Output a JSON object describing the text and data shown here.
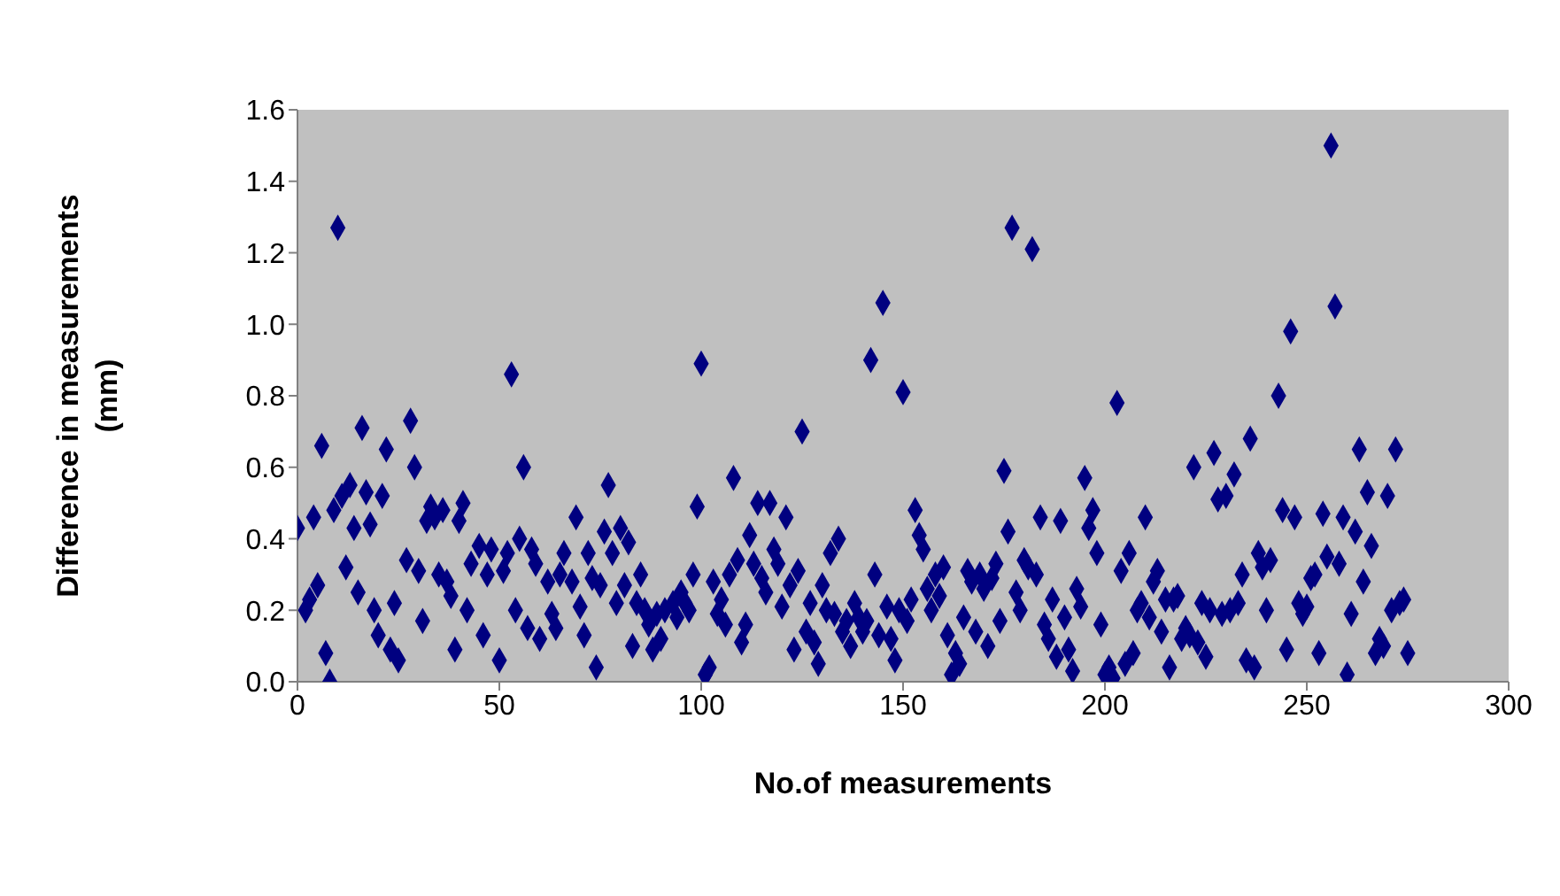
{
  "chart_data": {
    "type": "scatter",
    "xlabel": "No.of measurements",
    "ylabel": "Difference in measurements (mm)",
    "xlim": [
      0,
      300
    ],
    "xticks": [
      0,
      50,
      100,
      150,
      200,
      250,
      300
    ],
    "ylim": [
      0,
      1.6
    ],
    "yticks": [
      {
        "value": 0,
        "label": "0.0"
      },
      0.2,
      0.4,
      0.6,
      0.8,
      {
        "value": 1,
        "label": "1.0"
      },
      1.2,
      1.4,
      1.6
    ],
    "marker": "diamond",
    "grid": false,
    "legend": false,
    "series": [
      {
        "color": "#000080",
        "x": [
          0,
          2,
          3,
          4,
          5,
          6,
          7,
          8,
          9,
          10,
          11,
          12,
          13,
          14,
          15,
          16,
          17,
          18,
          19,
          20,
          21,
          22,
          23,
          24,
          25,
          27,
          28,
          29,
          30,
          31,
          32,
          33,
          34,
          35,
          36,
          37,
          38,
          39,
          40,
          41,
          42,
          43,
          45,
          46,
          47,
          48,
          50,
          51,
          52,
          53,
          54,
          55,
          56,
          57,
          58,
          59,
          60,
          62,
          63,
          64,
          65,
          66,
          68,
          69,
          70,
          71,
          72,
          73,
          74,
          75,
          76,
          77,
          78,
          79,
          80,
          81,
          82,
          83,
          84,
          85,
          86,
          87,
          88,
          89,
          90,
          91,
          93,
          94,
          95,
          96,
          97,
          98,
          99,
          100,
          101,
          102,
          103,
          104,
          105,
          106,
          107,
          108,
          109,
          110,
          111,
          112,
          113,
          114,
          115,
          116,
          117,
          118,
          119,
          120,
          121,
          122,
          123,
          124,
          125,
          126,
          127,
          128,
          129,
          130,
          131,
          132,
          133,
          134,
          135,
          136,
          137,
          138,
          139,
          140,
          141,
          142,
          143,
          144,
          145,
          146,
          147,
          148,
          149,
          150,
          151,
          152,
          153,
          154,
          155,
          156,
          157,
          158,
          159,
          160,
          161,
          162,
          163,
          164,
          165,
          166,
          167,
          168,
          169,
          170,
          171,
          172,
          173,
          174,
          175,
          176,
          177,
          178,
          179,
          180,
          181,
          182,
          183,
          184,
          185,
          186,
          187,
          188,
          189,
          190,
          191,
          192,
          193,
          194,
          195,
          196,
          197,
          198,
          199,
          200,
          201,
          202,
          203,
          204,
          205,
          206,
          207,
          208,
          209,
          210,
          211,
          212,
          213,
          214,
          215,
          216,
          217,
          218,
          219,
          220,
          221,
          222,
          223,
          224,
          225,
          226,
          227,
          228,
          229,
          230,
          231,
          232,
          233,
          234,
          235,
          236,
          237,
          238,
          239,
          240,
          241,
          243,
          244,
          245,
          246,
          247,
          248,
          249,
          250,
          251,
          252,
          253,
          254,
          255,
          256,
          257,
          258,
          259,
          260,
          261,
          262,
          263,
          264,
          265,
          266,
          267,
          268,
          269,
          270,
          271,
          272,
          273,
          274,
          275
        ],
        "values": [
          0.43,
          0.2,
          0.23,
          0.46,
          0.27,
          0.66,
          0.08,
          0.0,
          0.48,
          1.27,
          0.52,
          0.32,
          0.55,
          0.43,
          0.25,
          0.71,
          0.53,
          0.44,
          0.2,
          0.13,
          0.52,
          0.65,
          0.09,
          0.22,
          0.06,
          0.34,
          0.73,
          0.6,
          0.31,
          0.17,
          0.45,
          0.49,
          0.46,
          0.3,
          0.48,
          0.28,
          0.24,
          0.09,
          0.45,
          0.5,
          0.2,
          0.33,
          0.38,
          0.13,
          0.3,
          0.37,
          0.06,
          0.31,
          0.36,
          0.86,
          0.2,
          0.4,
          0.6,
          0.15,
          0.37,
          0.33,
          0.12,
          0.28,
          0.19,
          0.15,
          0.3,
          0.36,
          0.28,
          0.46,
          0.21,
          0.13,
          0.36,
          0.29,
          0.04,
          0.27,
          0.42,
          0.55,
          0.36,
          0.22,
          0.43,
          0.27,
          0.39,
          0.1,
          0.22,
          0.3,
          0.2,
          0.16,
          0.09,
          0.19,
          0.12,
          0.2,
          0.22,
          0.18,
          0.25,
          0.22,
          0.2,
          0.3,
          0.49,
          0.89,
          0.02,
          0.04,
          0.28,
          0.19,
          0.23,
          0.16,
          0.3,
          0.57,
          0.34,
          0.11,
          0.16,
          0.41,
          0.33,
          0.5,
          0.29,
          0.25,
          0.5,
          0.37,
          0.33,
          0.21,
          0.46,
          0.27,
          0.09,
          0.31,
          0.7,
          0.14,
          0.22,
          0.11,
          0.05,
          0.27,
          0.2,
          0.36,
          0.19,
          0.4,
          0.14,
          0.17,
          0.1,
          0.22,
          0.18,
          0.14,
          0.17,
          0.9,
          0.3,
          0.13,
          1.06,
          0.21,
          0.12,
          0.06,
          0.2,
          0.81,
          0.17,
          0.23,
          0.48,
          0.41,
          0.37,
          0.26,
          0.2,
          0.3,
          0.24,
          0.32,
          0.13,
          0.02,
          0.08,
          0.05,
          0.18,
          0.31,
          0.28,
          0.14,
          0.3,
          0.26,
          0.1,
          0.29,
          0.33,
          0.17,
          0.59,
          0.42,
          1.27,
          0.25,
          0.2,
          0.34,
          0.32,
          1.21,
          0.3,
          0.46,
          0.16,
          0.12,
          0.23,
          0.07,
          0.45,
          0.18,
          0.09,
          0.03,
          0.26,
          0.21,
          0.57,
          0.43,
          0.48,
          0.36,
          0.16,
          0.02,
          0.04,
          0.01,
          0.78,
          0.31,
          0.05,
          0.36,
          0.08,
          0.2,
          0.22,
          0.46,
          0.18,
          0.28,
          0.31,
          0.14,
          0.23,
          0.04,
          0.23,
          0.24,
          0.12,
          0.15,
          0.13,
          0.6,
          0.11,
          0.22,
          0.07,
          0.2,
          0.64,
          0.51,
          0.19,
          0.52,
          0.2,
          0.58,
          0.22,
          0.3,
          0.06,
          0.68,
          0.04,
          0.36,
          0.32,
          0.2,
          0.34,
          0.8,
          0.48,
          0.09,
          0.98,
          0.46,
          0.22,
          0.19,
          0.21,
          0.29,
          0.3,
          0.08,
          0.47,
          0.35,
          1.5,
          1.05,
          0.33,
          0.46,
          0.02,
          0.19,
          0.42,
          0.65,
          0.28,
          0.53,
          0.38,
          0.08,
          0.12,
          0.1,
          0.52,
          0.2,
          0.65,
          0.22,
          0.23,
          0.08
        ]
      }
    ]
  }
}
